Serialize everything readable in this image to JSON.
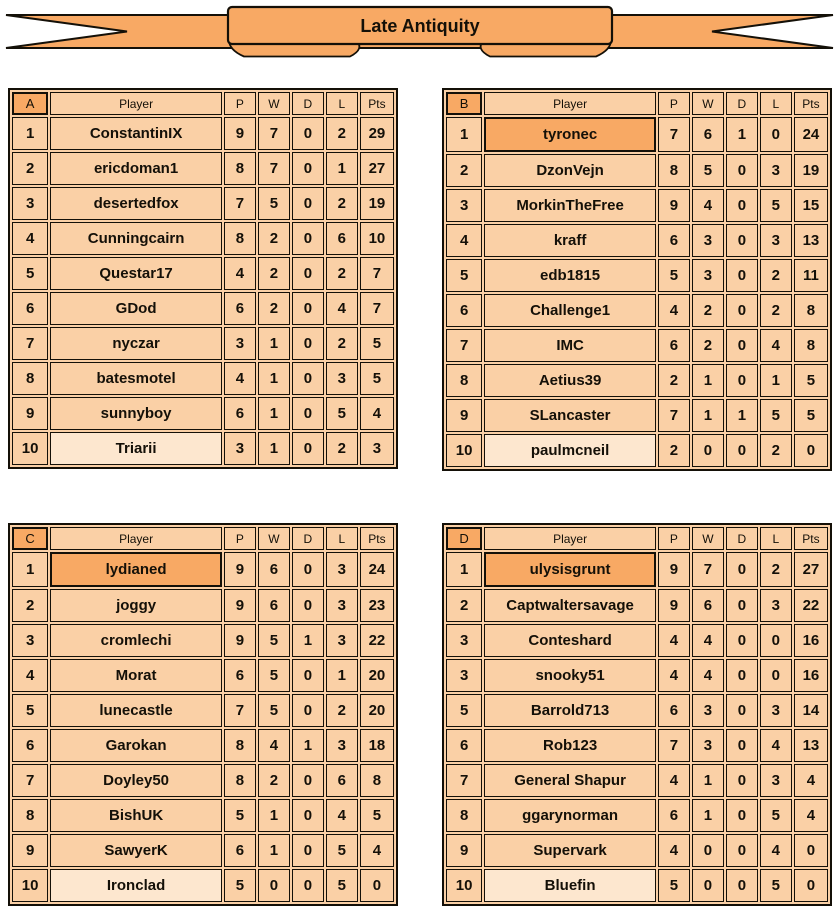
{
  "banner": {
    "title": "Late Antiquity"
  },
  "colors": {
    "ribbon": "#F8A964",
    "cell": "#FAD0A6",
    "highlight": "#F8A964",
    "pale_cell": "#FDE7CF",
    "border": "#141008",
    "background": "#FFFFFF"
  },
  "columns": [
    "Player",
    "P",
    "W",
    "D",
    "L",
    "Pts"
  ],
  "groups": [
    {
      "label": "A",
      "rows": [
        {
          "rank": "1",
          "name": "ConstantinIX",
          "p": "9",
          "w": "7",
          "d": "0",
          "l": "2",
          "pts": "29",
          "hl": "none"
        },
        {
          "rank": "2",
          "name": "ericdoman1",
          "p": "8",
          "w": "7",
          "d": "0",
          "l": "1",
          "pts": "27",
          "hl": "none"
        },
        {
          "rank": "3",
          "name": "desertedfox",
          "p": "7",
          "w": "5",
          "d": "0",
          "l": "2",
          "pts": "19",
          "hl": "none"
        },
        {
          "rank": "4",
          "name": "Cunningcairn",
          "p": "8",
          "w": "2",
          "d": "0",
          "l": "6",
          "pts": "10",
          "hl": "none"
        },
        {
          "rank": "5",
          "name": "Questar17",
          "p": "4",
          "w": "2",
          "d": "0",
          "l": "2",
          "pts": "7",
          "hl": "none"
        },
        {
          "rank": "6",
          "name": "GDod",
          "p": "6",
          "w": "2",
          "d": "0",
          "l": "4",
          "pts": "7",
          "hl": "none"
        },
        {
          "rank": "7",
          "name": "nyczar",
          "p": "3",
          "w": "1",
          "d": "0",
          "l": "2",
          "pts": "5",
          "hl": "none"
        },
        {
          "rank": "8",
          "name": "batesmotel",
          "p": "4",
          "w": "1",
          "d": "0",
          "l": "3",
          "pts": "5",
          "hl": "none"
        },
        {
          "rank": "9",
          "name": "sunnyboy",
          "p": "6",
          "w": "1",
          "d": "0",
          "l": "5",
          "pts": "4",
          "hl": "none"
        },
        {
          "rank": "10",
          "name": "Triarii",
          "p": "3",
          "w": "1",
          "d": "0",
          "l": "2",
          "pts": "3",
          "hl": "pale"
        }
      ]
    },
    {
      "label": "B",
      "rows": [
        {
          "rank": "1",
          "name": "tyronec",
          "p": "7",
          "w": "6",
          "d": "1",
          "l": "0",
          "pts": "24",
          "hl": "dark"
        },
        {
          "rank": "2",
          "name": "DzonVejn",
          "p": "8",
          "w": "5",
          "d": "0",
          "l": "3",
          "pts": "19",
          "hl": "none"
        },
        {
          "rank": "3",
          "name": "MorkinTheFree",
          "p": "9",
          "w": "4",
          "d": "0",
          "l": "5",
          "pts": "15",
          "hl": "none"
        },
        {
          "rank": "4",
          "name": "kraff",
          "p": "6",
          "w": "3",
          "d": "0",
          "l": "3",
          "pts": "13",
          "hl": "none"
        },
        {
          "rank": "5",
          "name": "edb1815",
          "p": "5",
          "w": "3",
          "d": "0",
          "l": "2",
          "pts": "11",
          "hl": "none"
        },
        {
          "rank": "6",
          "name": "Challenge1",
          "p": "4",
          "w": "2",
          "d": "0",
          "l": "2",
          "pts": "8",
          "hl": "none"
        },
        {
          "rank": "7",
          "name": "IMC",
          "p": "6",
          "w": "2",
          "d": "0",
          "l": "4",
          "pts": "8",
          "hl": "none"
        },
        {
          "rank": "8",
          "name": "Aetius39",
          "p": "2",
          "w": "1",
          "d": "0",
          "l": "1",
          "pts": "5",
          "hl": "none"
        },
        {
          "rank": "9",
          "name": "SLancaster",
          "p": "7",
          "w": "1",
          "d": "1",
          "l": "5",
          "pts": "5",
          "hl": "none"
        },
        {
          "rank": "10",
          "name": "paulmcneil",
          "p": "2",
          "w": "0",
          "d": "0",
          "l": "2",
          "pts": "0",
          "hl": "pale"
        }
      ]
    },
    {
      "label": "C",
      "rows": [
        {
          "rank": "1",
          "name": "lydianed",
          "p": "9",
          "w": "6",
          "d": "0",
          "l": "3",
          "pts": "24",
          "hl": "dark"
        },
        {
          "rank": "2",
          "name": "joggy",
          "p": "9",
          "w": "6",
          "d": "0",
          "l": "3",
          "pts": "23",
          "hl": "none"
        },
        {
          "rank": "3",
          "name": "cromlechi",
          "p": "9",
          "w": "5",
          "d": "1",
          "l": "3",
          "pts": "22",
          "hl": "none"
        },
        {
          "rank": "4",
          "name": "Morat",
          "p": "6",
          "w": "5",
          "d": "0",
          "l": "1",
          "pts": "20",
          "hl": "none"
        },
        {
          "rank": "5",
          "name": "lunecastle",
          "p": "7",
          "w": "5",
          "d": "0",
          "l": "2",
          "pts": "20",
          "hl": "none"
        },
        {
          "rank": "6",
          "name": "Garokan",
          "p": "8",
          "w": "4",
          "d": "1",
          "l": "3",
          "pts": "18",
          "hl": "none"
        },
        {
          "rank": "7",
          "name": "Doyley50",
          "p": "8",
          "w": "2",
          "d": "0",
          "l": "6",
          "pts": "8",
          "hl": "none"
        },
        {
          "rank": "8",
          "name": "BishUK",
          "p": "5",
          "w": "1",
          "d": "0",
          "l": "4",
          "pts": "5",
          "hl": "none"
        },
        {
          "rank": "9",
          "name": "SawyerK",
          "p": "6",
          "w": "1",
          "d": "0",
          "l": "5",
          "pts": "4",
          "hl": "none"
        },
        {
          "rank": "10",
          "name": "Ironclad",
          "p": "5",
          "w": "0",
          "d": "0",
          "l": "5",
          "pts": "0",
          "hl": "pale"
        }
      ]
    },
    {
      "label": "D",
      "rows": [
        {
          "rank": "1",
          "name": "ulysisgrunt",
          "p": "9",
          "w": "7",
          "d": "0",
          "l": "2",
          "pts": "27",
          "hl": "dark"
        },
        {
          "rank": "2",
          "name": "Captwaltersavage",
          "p": "9",
          "w": "6",
          "d": "0",
          "l": "3",
          "pts": "22",
          "hl": "none"
        },
        {
          "rank": "3",
          "name": "Conteshard",
          "p": "4",
          "w": "4",
          "d": "0",
          "l": "0",
          "pts": "16",
          "hl": "none"
        },
        {
          "rank": "3",
          "name": "snooky51",
          "p": "4",
          "w": "4",
          "d": "0",
          "l": "0",
          "pts": "16",
          "hl": "none"
        },
        {
          "rank": "5",
          "name": "Barrold713",
          "p": "6",
          "w": "3",
          "d": "0",
          "l": "3",
          "pts": "14",
          "hl": "none"
        },
        {
          "rank": "6",
          "name": "Rob123",
          "p": "7",
          "w": "3",
          "d": "0",
          "l": "4",
          "pts": "13",
          "hl": "none"
        },
        {
          "rank": "7",
          "name": "General Shapur",
          "p": "4",
          "w": "1",
          "d": "0",
          "l": "3",
          "pts": "4",
          "hl": "none"
        },
        {
          "rank": "8",
          "name": "ggarynorman",
          "p": "6",
          "w": "1",
          "d": "0",
          "l": "5",
          "pts": "4",
          "hl": "none"
        },
        {
          "rank": "9",
          "name": "Supervark",
          "p": "4",
          "w": "0",
          "d": "0",
          "l": "4",
          "pts": "0",
          "hl": "none"
        },
        {
          "rank": "10",
          "name": "Bluefin",
          "p": "5",
          "w": "0",
          "d": "0",
          "l": "5",
          "pts": "0",
          "hl": "pale"
        }
      ]
    }
  ]
}
